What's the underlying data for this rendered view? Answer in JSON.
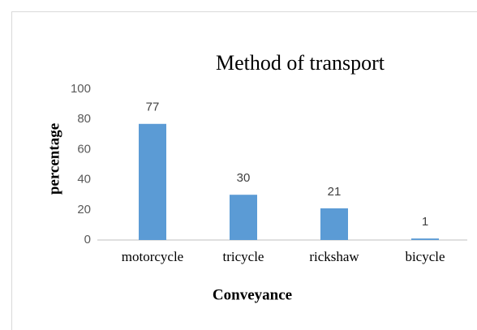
{
  "chart_data": {
    "type": "bar",
    "title": "Method of transport",
    "x_label": "Conveyance",
    "y_label": "percentage",
    "categories": [
      "motorcycle",
      "tricycle",
      "rickshaw",
      "bicycle"
    ],
    "values": [
      77,
      30,
      21,
      1
    ],
    "color": "#5b9bd5",
    "ylim": [
      0,
      100
    ],
    "yticks": [
      0,
      20,
      40,
      60,
      80,
      100
    ],
    "grid": false
  }
}
